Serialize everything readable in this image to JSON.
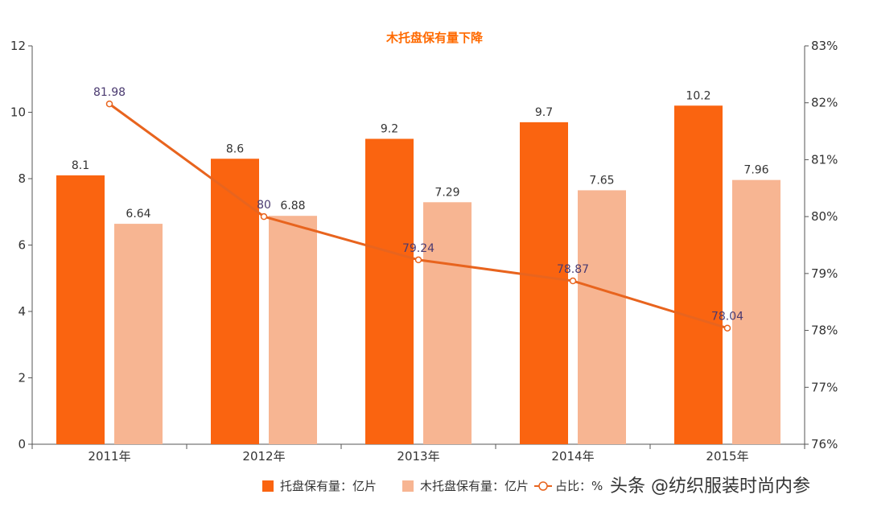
{
  "chart_data": {
    "type": "bar",
    "title": "木托盘保有量下降",
    "categories": [
      "2011年",
      "2012年",
      "2013年",
      "2014年",
      "2015年"
    ],
    "series": [
      {
        "name": "托盘保有量：亿片",
        "type": "bar",
        "axis": "left",
        "values": [
          8.1,
          8.6,
          9.2,
          9.7,
          10.2
        ],
        "labels": [
          "8.1",
          "8.6",
          "9.2",
          "9.7",
          "10.2"
        ],
        "color": "#fa6410"
      },
      {
        "name": "木托盘保有量：亿片",
        "type": "bar",
        "axis": "left",
        "values": [
          6.64,
          6.88,
          7.29,
          7.65,
          7.96
        ],
        "labels": [
          "6.64",
          "6.88",
          "7.29",
          "7.65",
          "7.96"
        ],
        "color": "#f7b592"
      },
      {
        "name": "占比：%",
        "type": "line",
        "axis": "right",
        "values": [
          81.98,
          80,
          79.24,
          78.87,
          78.04
        ],
        "labels": [
          "81.98",
          "80",
          "79.24",
          "78.87",
          "78.04"
        ],
        "color": "#e8641e"
      }
    ],
    "y_left": {
      "min": 0,
      "max": 12,
      "step": 2,
      "ticks": [
        "0",
        "2",
        "4",
        "6",
        "8",
        "10",
        "12"
      ]
    },
    "y_right": {
      "min": 76,
      "max": 83,
      "step": 1,
      "ticks": [
        "76%",
        "77%",
        "78%",
        "79%",
        "80%",
        "81%",
        "82%",
        "83%"
      ]
    },
    "legend_position": "bottom",
    "grid": false
  },
  "watermark": {
    "text": "头条 @纺织服装时尚内参"
  }
}
